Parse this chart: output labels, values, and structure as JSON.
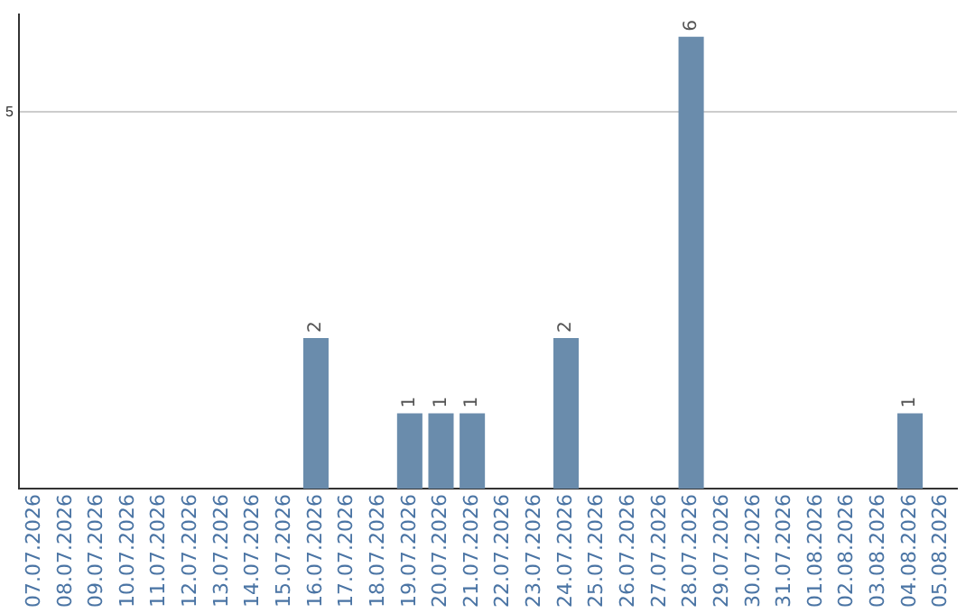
{
  "chart_data": {
    "type": "bar",
    "categories": [
      "07.07.2026",
      "08.07.2026",
      "09.07.2026",
      "10.07.2026",
      "11.07.2026",
      "12.07.2026",
      "13.07.2026",
      "14.07.2026",
      "15.07.2026",
      "16.07.2026",
      "17.07.2026",
      "18.07.2026",
      "19.07.2026",
      "20.07.2026",
      "21.07.2026",
      "22.07.2026",
      "23.07.2026",
      "24.07.2026",
      "25.07.2026",
      "26.07.2026",
      "27.07.2026",
      "28.07.2026",
      "29.07.2026",
      "30.07.2026",
      "31.07.2026",
      "01.08.2026",
      "02.08.2026",
      "03.08.2026",
      "04.08.2026",
      "05.08.2026"
    ],
    "values": [
      0,
      0,
      0,
      0,
      0,
      0,
      0,
      0,
      0,
      2,
      0,
      0,
      1,
      1,
      1,
      0,
      0,
      2,
      0,
      0,
      0,
      6,
      0,
      0,
      0,
      0,
      0,
      0,
      1,
      0
    ],
    "value_labels": [
      null,
      null,
      null,
      null,
      null,
      null,
      null,
      null,
      null,
      "2",
      null,
      null,
      "1",
      "1",
      "1",
      null,
      null,
      "2",
      null,
      null,
      null,
      "6",
      null,
      null,
      null,
      null,
      null,
      null,
      "1",
      null
    ],
    "color": "#6a8cac",
    "ylim": [
      0,
      6.3
    ],
    "yticks": [
      5
    ],
    "grid": "y",
    "legend": false
  }
}
